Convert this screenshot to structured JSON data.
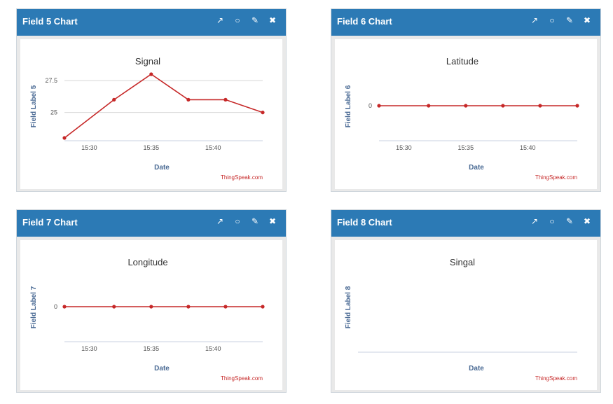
{
  "panels": [
    {
      "header_title": "Field 5 Chart"
    },
    {
      "header_title": "Field 6 Chart"
    },
    {
      "header_title": "Field 7 Chart"
    },
    {
      "header_title": "Field 8 Chart"
    }
  ],
  "header_icons": [
    "external-link-icon",
    "comment-icon",
    "pencil-icon",
    "close-icon"
  ],
  "colors": {
    "header": "#2c7ab5",
    "series": "#c62828",
    "axis_label": "#4a6a94",
    "credit": "#c62828"
  },
  "chart_data": [
    {
      "type": "line",
      "title": "Signal",
      "xlabel": "Date",
      "ylabel": "Field Label 5",
      "credit": "ThingSpeak.com",
      "x_ticks": [
        "15:30",
        "15:35",
        "15:40"
      ],
      "y_ticks": [
        "25",
        "27.5"
      ],
      "grid": true,
      "series": [
        {
          "x": [
            "15:28",
            "15:32",
            "15:35",
            "15:38",
            "15:41",
            "15:44"
          ],
          "values": [
            23,
            26,
            28,
            26,
            26,
            25
          ]
        }
      ]
    },
    {
      "type": "line",
      "title": "Latitude",
      "xlabel": "Date",
      "ylabel": "Field Label 6",
      "credit": "ThingSpeak.com",
      "x_ticks": [
        "15:30",
        "15:35",
        "15:40"
      ],
      "y_ticks": [
        "0"
      ],
      "grid": true,
      "series": [
        {
          "x": [
            "15:28",
            "15:32",
            "15:35",
            "15:38",
            "15:41",
            "15:44"
          ],
          "values": [
            0,
            0,
            0,
            0,
            0,
            0
          ]
        }
      ]
    },
    {
      "type": "line",
      "title": "Longitude",
      "xlabel": "Date",
      "ylabel": "Field Label 7",
      "credit": "ThingSpeak.com",
      "x_ticks": [
        "15:30",
        "15:35",
        "15:40"
      ],
      "y_ticks": [
        "0"
      ],
      "grid": true,
      "series": [
        {
          "x": [
            "15:28",
            "15:32",
            "15:35",
            "15:38",
            "15:41",
            "15:44"
          ],
          "values": [
            0,
            0,
            0,
            0,
            0,
            0
          ]
        }
      ]
    },
    {
      "type": "line",
      "title": "Singal",
      "xlabel": "Date",
      "ylabel": "Field Label 8",
      "credit": "ThingSpeak.com",
      "x_ticks": [],
      "y_ticks": [],
      "grid": false,
      "series": []
    }
  ]
}
